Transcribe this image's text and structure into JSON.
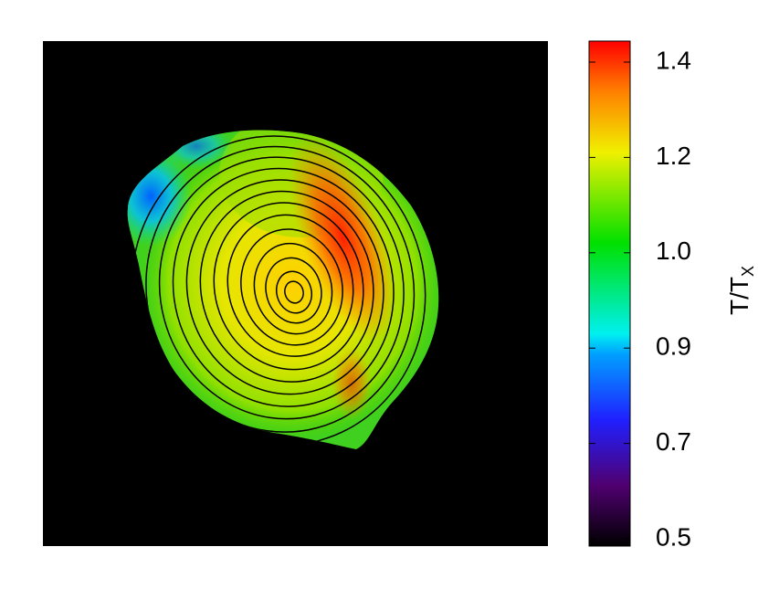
{
  "chart_data": {
    "type": "image-map",
    "colorbar_label": {
      "main": "T/T",
      "sub": "X"
    },
    "cticks": [
      0.5,
      0.7,
      0.9,
      {
        "value": 1,
        "label": "1.0"
      },
      1.2,
      1.4
    ],
    "clim": [
      0.5,
      1.4
    ]
  }
}
